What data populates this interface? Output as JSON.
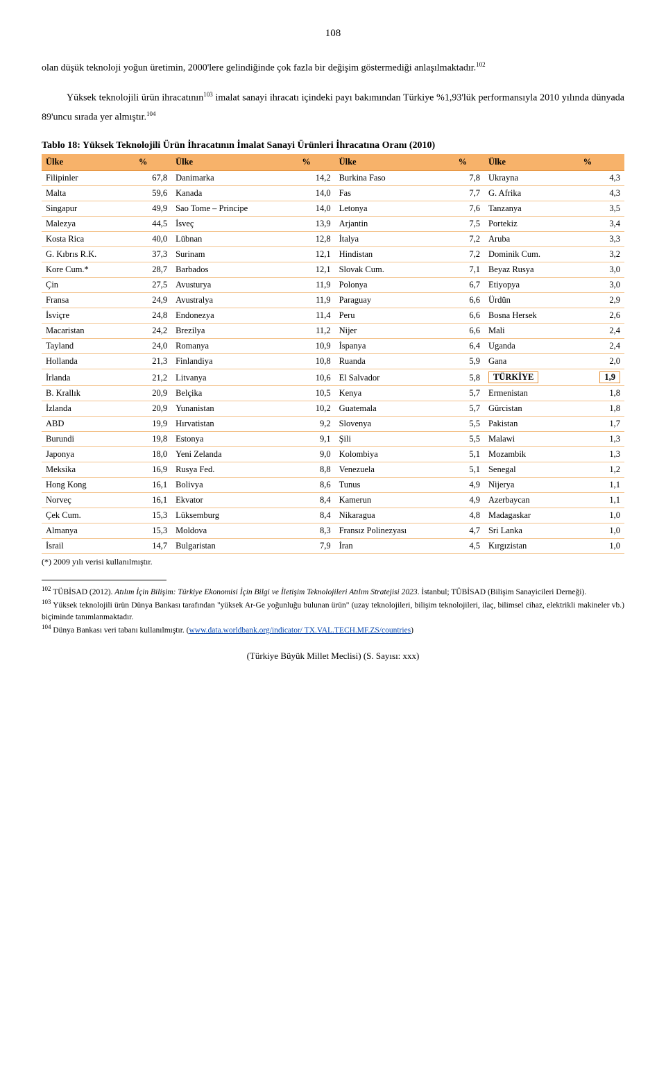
{
  "pageNumber": "108",
  "para1_a": "olan düşük teknoloji yoğun üretimin, 2000'lere gelindiğinde çok fazla bir değişim göstermediği anlaşılmaktadır.",
  "sup102": "102",
  "para2_a": "Yüksek teknolojili ürün ihracatının",
  "sup103": "103",
  "para2_b": " imalat sanayi ihracatı içindeki payı bakımından Türkiye %1,93'lük performansıyla 2010 yılında dünyada 89'uncu sırada yer almıştır.",
  "sup104": "104",
  "tableTitle": "Tablo 18: Yüksek Teknolojili Ürün İhracatının İmalat Sanayi Ürünleri İhracatına Oranı (2010)",
  "header": {
    "c1": "Ülke",
    "c2": "%",
    "c3": "Ülke",
    "c4": "%",
    "c5": "Ülke",
    "c6": "%",
    "c7": "Ülke",
    "c8": "%"
  },
  "headerBg": "#f7b26a",
  "rows": [
    [
      "Filipinler",
      "67,8",
      "Danimarka",
      "14,2",
      "Burkina Faso",
      "7,8",
      "Ukrayna",
      "4,3"
    ],
    [
      "Malta",
      "59,6",
      "Kanada",
      "14,0",
      "Fas",
      "7,7",
      "G. Afrika",
      "4,3"
    ],
    [
      "Singapur",
      "49,9",
      "Sao Tome – Principe",
      "14,0",
      "Letonya",
      "7,6",
      "Tanzanya",
      "3,5"
    ],
    [
      "Malezya",
      "44,5",
      "İsveç",
      "13,9",
      "Arjantin",
      "7,5",
      "Portekiz",
      "3,4"
    ],
    [
      "Kosta Rica",
      "40,0",
      "Lübnan",
      "12,8",
      "İtalya",
      "7,2",
      "Aruba",
      "3,3"
    ],
    [
      "G. Kıbrıs R.K.",
      "37,3",
      "Surinam",
      "12,1",
      "Hindistan",
      "7,2",
      "Dominik Cum.",
      "3,2"
    ],
    [
      "Kore Cum.*",
      "28,7",
      "Barbados",
      "12,1",
      "Slovak Cum.",
      "7,1",
      "Beyaz Rusya",
      "3,0"
    ],
    [
      "Çin",
      "27,5",
      "Avusturya",
      "11,9",
      "Polonya",
      "6,7",
      "Etiyopya",
      "3,0"
    ],
    [
      "Fransa",
      "24,9",
      "Avustralya",
      "11,9",
      "Paraguay",
      "6,6",
      "Ürdün",
      "2,9"
    ],
    [
      "İsviçre",
      "24,8",
      "Endonezya",
      "11,4",
      "Peru",
      "6,6",
      "Bosna Hersek",
      "2,6"
    ],
    [
      "Macaristan",
      "24,2",
      "Brezilya",
      "11,2",
      "Nijer",
      "6,6",
      "Mali",
      "2,4"
    ],
    [
      "Tayland",
      "24,0",
      "Romanya",
      "10,9",
      "İspanya",
      "6,4",
      "Uganda",
      "2,4"
    ],
    [
      "Hollanda",
      "21,3",
      "Finlandiya",
      "10,8",
      "Ruanda",
      "5,9",
      "Gana",
      "2,0"
    ],
    [
      "İrlanda",
      "21,2",
      "Litvanya",
      "10,6",
      "El Salvador",
      "5,8",
      "TÜRKİYE",
      "1,9"
    ],
    [
      "B. Krallık",
      "20,9",
      "Belçika",
      "10,5",
      "Kenya",
      "5,7",
      "Ermenistan",
      "1,8"
    ],
    [
      "İzlanda",
      "20,9",
      "Yunanistan",
      "10,2",
      "Guatemala",
      "5,7",
      "Gürcistan",
      "1,8"
    ],
    [
      "ABD",
      "19,9",
      "Hırvatistan",
      "9,2",
      "Slovenya",
      "5,5",
      "Pakistan",
      "1,7"
    ],
    [
      "Burundi",
      "19,8",
      "Estonya",
      "9,1",
      "Şili",
      "5,5",
      "Malawi",
      "1,3"
    ],
    [
      "Japonya",
      "18,0",
      "Yeni Zelanda",
      "9,0",
      "Kolombiya",
      "5,1",
      "Mozambik",
      "1,3"
    ],
    [
      "Meksika",
      "16,9",
      "Rusya Fed.",
      "8,8",
      "Venezuela",
      "5,1",
      "Senegal",
      "1,2"
    ],
    [
      "Hong Kong",
      "16,1",
      "Bolivya",
      "8,6",
      "Tunus",
      "4,9",
      "Nijerya",
      "1,1"
    ],
    [
      "Norveç",
      "16,1",
      "Ekvator",
      "8,4",
      "Kamerun",
      "4,9",
      "Azerbaycan",
      "1,1"
    ],
    [
      "Çek Cum.",
      "15,3",
      "Lüksemburg",
      "8,4",
      "Nikaragua",
      "4,8",
      "Madagaskar",
      "1,0"
    ],
    [
      "Almanya",
      "15,3",
      "Moldova",
      "8,3",
      "Fransız Polinezyası",
      "4,7",
      "Sri Lanka",
      "1,0"
    ],
    [
      "İsrail",
      "14,7",
      "Bulgaristan",
      "7,9",
      "İran",
      "4,5",
      "Kırgızistan",
      "1,0"
    ]
  ],
  "highlightRowIndex": 13,
  "tableFootnote": "(*) 2009 yılı verisi kullanılmıştır.",
  "fn102_a": " TÜBİSAD (2012). ",
  "fn102_b": "Atılım İçin Bilişim: Türkiye Ekonomisi İçin Bilgi ve İletişim Teknolojileri Atılım Stratejisi 2023",
  "fn102_c": ". İstanbul; TÜBİSAD (Bilişim Sanayicileri Derneği).",
  "fn103": " Yüksek teknolojili ürün Dünya Bankası tarafından \"yüksek Ar-Ge yoğunluğu bulunan ürün\" (uzay teknolojileri, bilişim teknolojileri, ilaç, bilimsel cihaz, elektrikli makineler vb.) biçiminde tanımlanmaktadır.",
  "fn104_a": " Dünya Bankası veri tabanı kullanılmıştır. (",
  "fn104_link": "www.data.worldbank.org/indicator/ TX.VAL.TECH.MF.ZS/countries",
  "fn104_b": ")",
  "bottom": "(Türkiye Büyük Millet Meclisi)          (S. Sayısı: xxx)"
}
